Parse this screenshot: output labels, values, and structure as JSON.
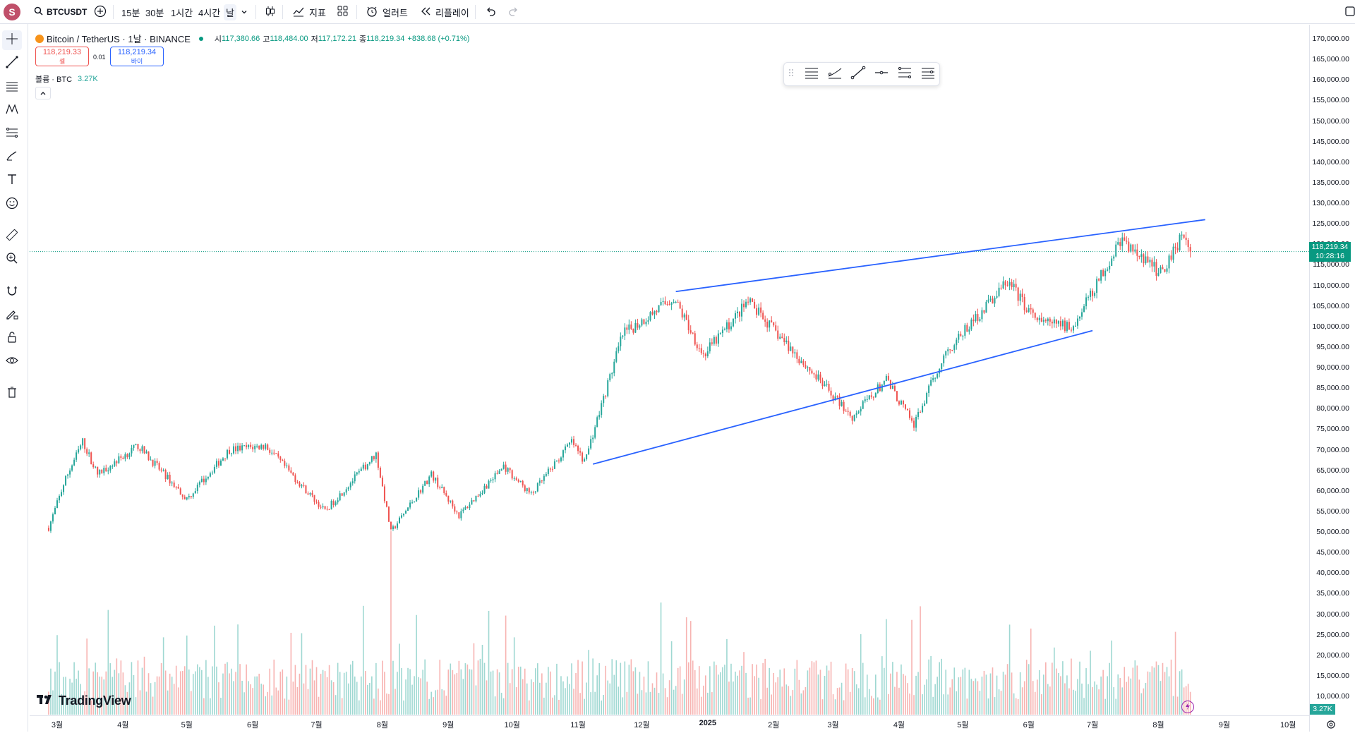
{
  "app": {
    "avatar_letter": "S",
    "brand": "TradingView"
  },
  "toolbar": {
    "symbol": "BTCUSDT",
    "intervals": [
      "15분",
      "30분",
      "1시간",
      "4시간",
      "날"
    ],
    "selected_interval": "날",
    "indicators_label": "지표",
    "alert_label": "얼러트",
    "replay_label": "리플레이"
  },
  "legend": {
    "title": "Bitcoin / TetherUS · 1날 · BINANCE",
    "open_label": "시",
    "open": "117,380.66",
    "high_label": "고",
    "high": "118,484.00",
    "low_label": "저",
    "low": "117,172.21",
    "close_label": "종",
    "close": "118,219.34",
    "change": "+838.68 (+0.71%)",
    "sell_price": "118,219.33",
    "sell_label": "셀",
    "spread": "0.01",
    "buy_price": "118,219.34",
    "buy_label": "바이",
    "volume_label": "볼륨 · BTC",
    "volume_value": "3.27K"
  },
  "price_axis": {
    "labels": [
      "170,000.00",
      "165,000.00",
      "160,000.00",
      "155,000.00",
      "150,000.00",
      "145,000.00",
      "140,000.00",
      "135,000.00",
      "130,000.00",
      "125,000.00",
      "120,000.00",
      "115,000.00",
      "110,000.00",
      "105,000.00",
      "100,000.00",
      "95,000.00",
      "90,000.00",
      "85,000.00",
      "80,000.00",
      "75,000.00",
      "70,000.00",
      "65,000.00",
      "60,000.00",
      "55,000.00",
      "50,000.00",
      "45,000.00",
      "40,000.00",
      "35,000.00",
      "30,000.00",
      "25,000.00",
      "20,000.00",
      "15,000.00",
      "10,000.00"
    ],
    "current_price": "118,219.34",
    "countdown": "10:28:16",
    "volume_badge": "3.27K"
  },
  "time_axis": {
    "labels": [
      "3월",
      "4월",
      "5월",
      "6월",
      "7월",
      "8월",
      "9월",
      "10월",
      "11월",
      "12월",
      "2025",
      "2월",
      "3월",
      "4월",
      "5월",
      "6월",
      "7월",
      "8월",
      "9월",
      "10월"
    ]
  },
  "colors": {
    "up": "#26a69a",
    "down": "#ef5350",
    "trendline": "#2962ff",
    "price_tag": "#089981",
    "vol_up": "#9fd8d2",
    "vol_down": "#f7b3b1"
  },
  "chart_data": {
    "type": "candlestick",
    "symbol": "BTCUSDT",
    "timeframe": "1 day",
    "ylim": [
      10000,
      170000
    ],
    "path_keypoints": [
      {
        "date": "2024-02-26",
        "price": 51000
      },
      {
        "date": "2024-03-05",
        "price": 63000
      },
      {
        "date": "2024-03-13",
        "price": 72000
      },
      {
        "date": "2024-03-20",
        "price": 64000
      },
      {
        "date": "2024-04-08",
        "price": 71000
      },
      {
        "date": "2024-05-01",
        "price": 58000
      },
      {
        "date": "2024-05-21",
        "price": 70000
      },
      {
        "date": "2024-06-07",
        "price": 71000
      },
      {
        "date": "2024-07-05",
        "price": 55000
      },
      {
        "date": "2024-07-29",
        "price": 69000
      },
      {
        "date": "2024-08-05",
        "price": 50000
      },
      {
        "date": "2024-08-24",
        "price": 64000
      },
      {
        "date": "2024-09-06",
        "price": 54000
      },
      {
        "date": "2024-09-27",
        "price": 66000
      },
      {
        "date": "2024-10-10",
        "price": 59000
      },
      {
        "date": "2024-10-29",
        "price": 72000
      },
      {
        "date": "2024-11-04",
        "price": 67000
      },
      {
        "date": "2024-11-22",
        "price": 98000
      },
      {
        "date": "2024-12-16",
        "price": 107000
      },
      {
        "date": "2024-12-30",
        "price": 93000
      },
      {
        "date": "2025-01-20",
        "price": 106000
      },
      {
        "date": "2025-02-24",
        "price": 86000
      },
      {
        "date": "2025-03-10",
        "price": 78000
      },
      {
        "date": "2025-03-26",
        "price": 87000
      },
      {
        "date": "2025-04-08",
        "price": 76000
      },
      {
        "date": "2025-04-22",
        "price": 93000
      },
      {
        "date": "2025-05-22",
        "price": 111000
      },
      {
        "date": "2025-06-05",
        "price": 101000
      },
      {
        "date": "2025-06-22",
        "price": 100000
      },
      {
        "date": "2025-07-14",
        "price": 121000
      },
      {
        "date": "2025-08-02",
        "price": 113000
      },
      {
        "date": "2025-08-13",
        "price": 123000
      },
      {
        "date": "2025-08-16",
        "price": 118219.34
      }
    ],
    "trendlines": [
      {
        "from": {
          "date": "2024-12-17",
          "price": 108500
        },
        "to": {
          "date": "2025-08-23",
          "price": 126000
        }
      },
      {
        "from": {
          "date": "2024-11-08",
          "price": 66500
        },
        "to": {
          "date": "2025-07-01",
          "price": 99000
        }
      }
    ],
    "last_price": 118219.34,
    "volume_peak": {
      "date": "2024-08-05",
      "value": "largest bar"
    }
  }
}
